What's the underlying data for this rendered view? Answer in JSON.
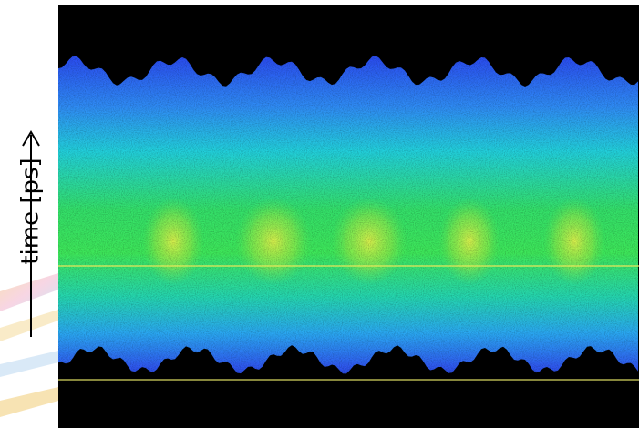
{
  "axis_label": "time [ps]"
}
